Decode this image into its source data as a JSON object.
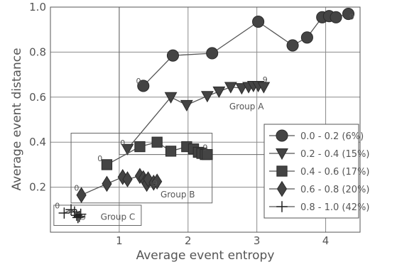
{
  "chart_data": {
    "type": "line",
    "title": "",
    "xlabel": "Average event entropy",
    "ylabel": "Average event distance",
    "xlim": [
      0,
      4.5
    ],
    "ylim": [
      0,
      1.0
    ],
    "x_ticks": [
      "1",
      "2",
      "3",
      "4"
    ],
    "y_ticks": [
      "0.2",
      "0.4",
      "0.6",
      "0.8",
      "1.0"
    ],
    "x_tick_values": [
      1,
      2,
      3,
      4
    ],
    "y_tick_values": [
      0.2,
      0.4,
      0.6,
      0.8,
      1.0
    ],
    "grid": true,
    "legend_position": "bottom-right",
    "series": [
      {
        "name": "0.0 - 0.2 (6%)",
        "marker": "circle",
        "x": [
          1.35,
          1.78,
          2.35,
          3.02,
          3.52,
          3.73,
          3.95,
          4.05,
          4.15,
          4.33
        ],
        "y": [
          0.65,
          0.785,
          0.795,
          0.935,
          0.83,
          0.865,
          0.955,
          0.96,
          0.955,
          0.97
        ]
      },
      {
        "name": "0.2 - 0.4 (15%)",
        "marker": "triangle-down",
        "x": [
          1.12,
          1.75,
          1.98,
          2.28,
          2.45,
          2.62,
          2.78,
          2.88,
          2.95,
          3.02,
          3.1
        ],
        "y": [
          0.37,
          0.6,
          0.565,
          0.605,
          0.625,
          0.645,
          0.64,
          0.645,
          0.65,
          0.65,
          0.645
        ]
      },
      {
        "name": "0.4 - 0.6 (17%)",
        "marker": "square",
        "x": [
          0.82,
          1.3,
          1.55,
          1.75,
          1.98,
          2.08,
          2.15,
          2.2,
          2.25,
          2.28
        ],
        "y": [
          0.3,
          0.38,
          0.4,
          0.36,
          0.38,
          0.37,
          0.355,
          0.35,
          0.345,
          0.345
        ]
      },
      {
        "name": "0.6 - 0.8 (20%)",
        "marker": "diamond",
        "x": [
          0.45,
          0.82,
          1.05,
          1.12,
          1.3,
          1.35,
          1.38,
          1.4,
          1.42,
          1.5,
          1.55
        ],
        "y": [
          0.165,
          0.215,
          0.245,
          0.235,
          0.25,
          0.24,
          0.225,
          0.215,
          0.235,
          0.22,
          0.225
        ]
      },
      {
        "name": "0.8 - 1.0 (42%)",
        "marker": "plus",
        "x": [
          0.2,
          0.3,
          0.35,
          0.38,
          0.4,
          0.42,
          0.44
        ],
        "y": [
          0.085,
          0.1,
          0.09,
          0.075,
          0.065,
          0.07,
          0.08
        ]
      }
    ],
    "point_labels": [
      {
        "text": "0",
        "x": 1.28,
        "y": 0.66
      },
      {
        "text": "9",
        "x": 4.38,
        "y": 0.945
      },
      {
        "text": "0",
        "x": 1.05,
        "y": 0.385
      },
      {
        "text": "9",
        "x": 3.12,
        "y": 0.665
      },
      {
        "text": "0",
        "x": 0.72,
        "y": 0.315
      },
      {
        "text": "9",
        "x": 2.25,
        "y": 0.365
      },
      {
        "text": "0",
        "x": 0.38,
        "y": 0.185
      },
      {
        "text": "9",
        "x": 1.52,
        "y": 0.205
      },
      {
        "text": "0",
        "x": 0.1,
        "y": 0.105
      },
      {
        "text": "9",
        "x": 0.48,
        "y": 0.055
      }
    ],
    "group_boxes": [
      {
        "label": "Group A",
        "x": [
          1.0,
          4.5
        ],
        "y": [
          0.345,
          1.0
        ],
        "label_x": 2.85,
        "label_y": 0.545
      },
      {
        "label": "Group B",
        "x": [
          0.3,
          2.35
        ],
        "y": [
          0.13,
          0.44
        ],
        "label_x": 1.85,
        "label_y": 0.155
      },
      {
        "label": "Group C",
        "x": [
          0.05,
          1.32
        ],
        "y": [
          0.03,
          0.12
        ],
        "label_x": 0.98,
        "label_y": 0.055
      }
    ]
  }
}
